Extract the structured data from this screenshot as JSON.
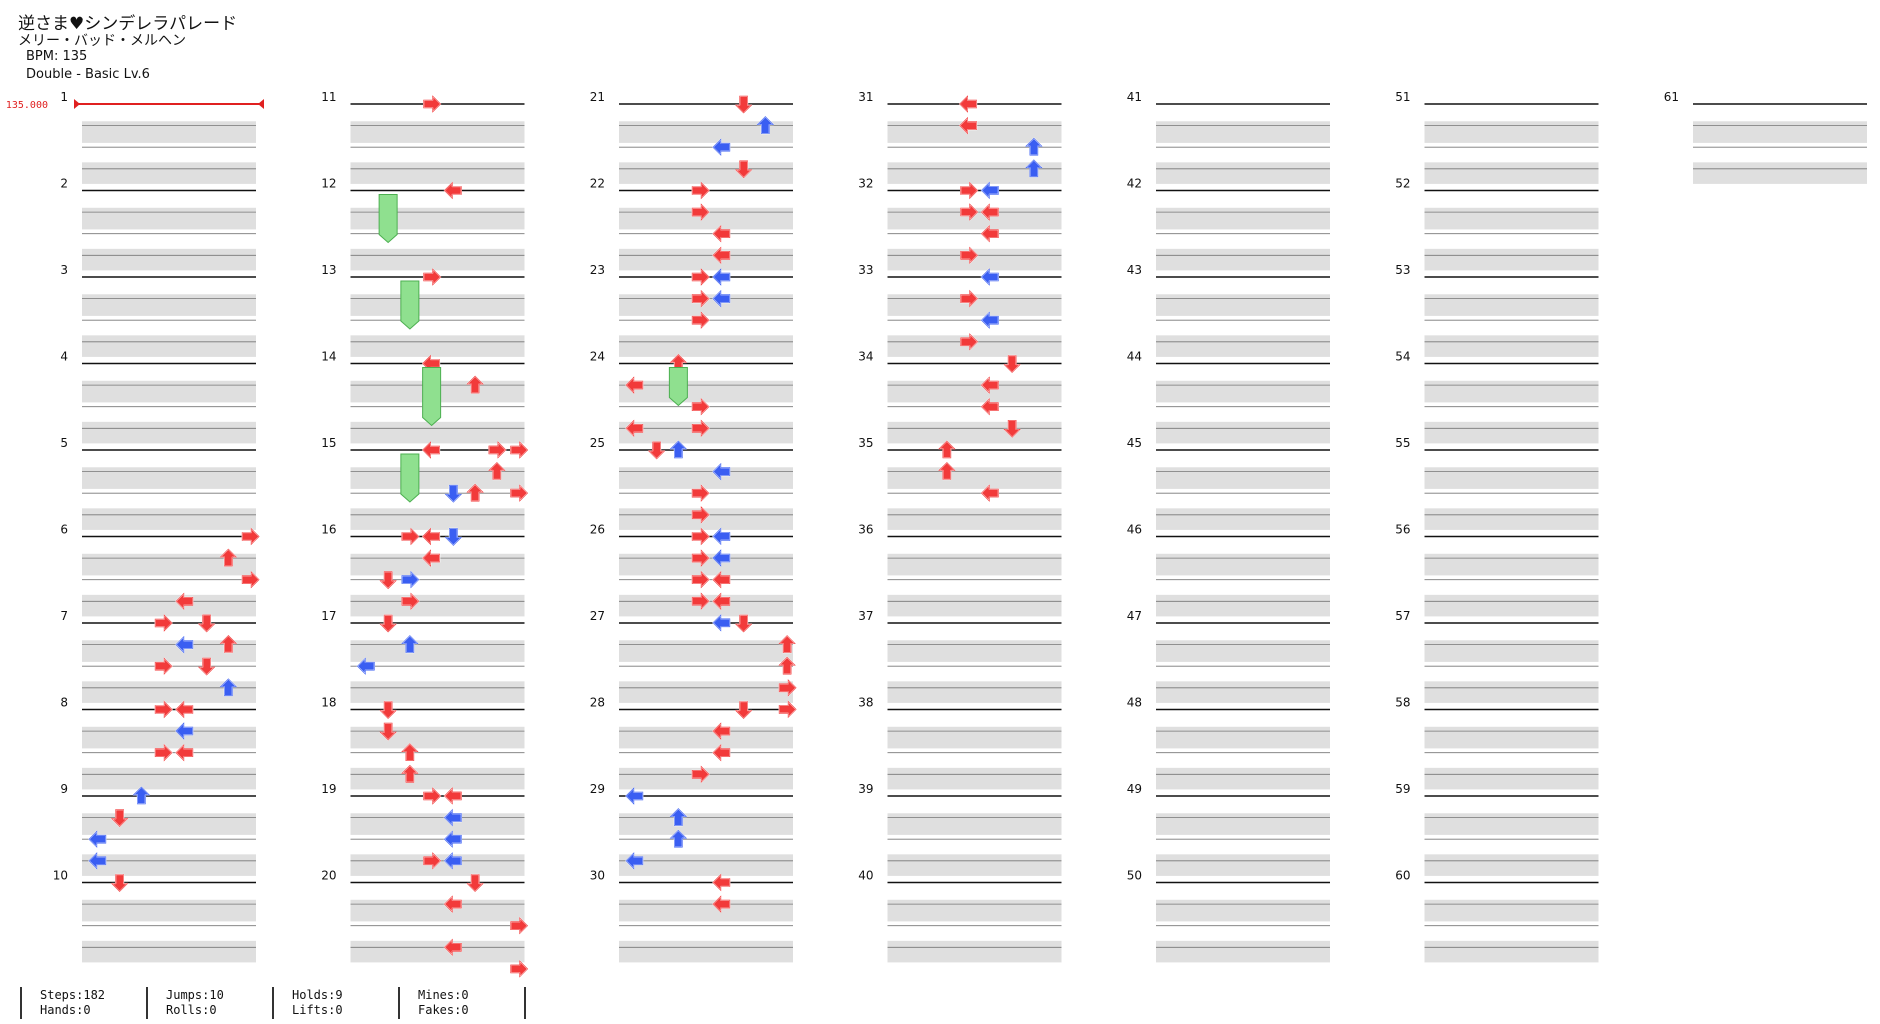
{
  "header": {
    "title": "逆さま♥シンデレラパレード",
    "artist": "メリー・バッド・メルヘン",
    "bpm": "BPM: 135",
    "difficulty": "Double - Basic  Lv.6"
  },
  "bpm_marker": "135.000",
  "colors": {
    "red_note": "#f23a3a",
    "blue_note": "#3a5ef2",
    "hold": "#8fe08f",
    "row_fill": "#dfdfdf",
    "bpm_line": "#e02020"
  },
  "chart_data": {
    "type": "note_chart",
    "mode": "Double",
    "lanes": 8,
    "measure_numbers": [
      "1",
      "2",
      "3",
      "4",
      "5",
      "6",
      "7",
      "8",
      "9",
      "10",
      "11",
      "12",
      "13",
      "14",
      "15",
      "16",
      "17",
      "18",
      "19",
      "20",
      "21",
      "22",
      "23",
      "24",
      "25",
      "26",
      "27",
      "28",
      "29",
      "30",
      "31",
      "32",
      "33",
      "34",
      "35",
      "36",
      "37",
      "38",
      "39",
      "40",
      "41",
      "42",
      "43",
      "44",
      "45",
      "46",
      "47",
      "48",
      "49",
      "50",
      "51",
      "52",
      "53",
      "54",
      "55",
      "56",
      "57",
      "58",
      "59",
      "60",
      "61"
    ],
    "notes": [
      [
        6,
        0,
        7,
        "R"
      ],
      [
        6,
        1,
        6,
        "U"
      ],
      [
        6,
        2,
        7,
        "R"
      ],
      [
        6,
        3,
        4,
        "L"
      ],
      [
        6,
        4,
        5,
        "D"
      ],
      [
        6,
        5,
        6,
        "U"
      ],
      [
        6,
        6,
        5,
        "D"
      ],
      [
        7,
        0,
        3,
        "R"
      ],
      [
        7,
        1,
        4,
        "L"
      ],
      [
        7,
        2,
        3,
        "R"
      ],
      [
        7,
        3,
        6,
        "U"
      ],
      [
        7,
        4,
        3,
        "R"
      ],
      [
        7,
        5,
        4,
        "L"
      ],
      [
        7,
        6,
        3,
        "R"
      ],
      [
        8,
        0,
        3,
        "R"
      ],
      [
        8,
        0,
        4,
        "L"
      ],
      [
        8,
        2,
        3,
        "R"
      ],
      [
        8,
        2,
        4,
        "L"
      ],
      [
        9,
        0,
        2,
        "U"
      ],
      [
        9,
        1,
        1,
        "D"
      ],
      [
        9,
        2,
        0,
        "L"
      ],
      [
        9,
        3,
        0,
        "L"
      ],
      [
        10,
        0,
        1,
        "D"
      ],
      [
        11,
        0,
        3,
        "R"
      ],
      [
        12,
        0,
        4,
        "L"
      ],
      [
        13,
        0,
        3,
        "R"
      ],
      [
        14,
        0,
        3,
        "L"
      ],
      [
        14,
        1,
        5,
        "U"
      ],
      [
        14,
        2,
        3,
        "L"
      ],
      [
        14,
        4,
        6,
        "R"
      ],
      [
        14,
        4,
        7,
        "R"
      ],
      [
        14,
        5,
        6,
        "U"
      ],
      [
        14,
        6,
        7,
        "R"
      ],
      [
        15,
        0,
        3,
        "L"
      ],
      [
        15,
        0,
        7,
        "R"
      ],
      [
        15,
        2,
        4,
        "D"
      ],
      [
        15,
        2,
        5,
        "U"
      ],
      [
        15,
        4,
        4,
        "D"
      ],
      [
        15,
        5,
        3,
        "L"
      ],
      [
        15,
        6,
        2,
        "R"
      ],
      [
        16,
        0,
        3,
        "L"
      ],
      [
        16,
        0,
        2,
        "R"
      ],
      [
        16,
        1,
        3,
        "L"
      ],
      [
        16,
        2,
        1,
        "D"
      ],
      [
        16,
        3,
        2,
        "R"
      ],
      [
        17,
        0,
        1,
        "D"
      ],
      [
        17,
        1,
        2,
        "U"
      ],
      [
        17,
        2,
        0,
        "L"
      ],
      [
        18,
        0,
        1,
        "D"
      ],
      [
        18,
        1,
        1,
        "D"
      ],
      [
        18,
        2,
        2,
        "U"
      ],
      [
        18,
        3,
        2,
        "U"
      ],
      [
        18,
        4,
        4,
        "L"
      ],
      [
        18,
        5,
        4,
        "L"
      ],
      [
        19,
        0,
        3,
        "R"
      ],
      [
        19,
        1,
        4,
        "L"
      ],
      [
        19,
        2,
        4,
        "L"
      ],
      [
        19,
        3,
        3,
        "R"
      ],
      [
        19,
        3,
        4,
        "L"
      ],
      [
        20,
        0,
        5,
        "D"
      ],
      [
        20,
        1,
        4,
        "L"
      ],
      [
        20,
        2,
        7,
        "R"
      ],
      [
        20,
        3,
        4,
        "L"
      ],
      [
        20,
        4,
        7,
        "R"
      ],
      [
        21,
        0,
        5,
        "D"
      ],
      [
        21,
        1,
        6,
        "U"
      ],
      [
        21,
        2,
        4,
        "L"
      ],
      [
        21,
        3,
        5,
        "D"
      ],
      [
        22,
        0,
        3,
        "R"
      ],
      [
        22,
        1,
        3,
        "R"
      ],
      [
        22,
        2,
        4,
        "L"
      ],
      [
        22,
        3,
        4,
        "L"
      ],
      [
        23,
        0,
        3,
        "R"
      ],
      [
        23,
        0,
        4,
        "L"
      ],
      [
        23,
        1,
        3,
        "R"
      ],
      [
        23,
        1,
        4,
        "L"
      ],
      [
        23,
        2,
        3,
        "R"
      ],
      [
        24,
        0,
        2,
        "U"
      ],
      [
        24,
        1,
        0,
        "L"
      ],
      [
        24,
        2,
        3,
        "R"
      ],
      [
        24,
        3,
        0,
        "L"
      ],
      [
        24,
        3,
        3,
        "R"
      ],
      [
        24,
        4,
        1,
        "D"
      ],
      [
        25,
        0,
        2,
        "U"
      ],
      [
        25,
        1,
        4,
        "L"
      ],
      [
        25,
        2,
        3,
        "R"
      ],
      [
        25,
        3,
        3,
        "R"
      ],
      [
        25,
        4,
        4,
        "L"
      ],
      [
        25,
        5,
        4,
        "L"
      ],
      [
        25,
        6,
        3,
        "R"
      ],
      [
        25,
        7,
        3,
        "R"
      ],
      [
        25,
        8,
        4,
        "L"
      ],
      [
        26,
        0,
        3,
        "R"
      ],
      [
        26,
        1,
        3,
        "R"
      ],
      [
        26,
        2,
        4,
        "L"
      ],
      [
        26,
        3,
        4,
        "L"
      ],
      [
        27,
        0,
        5,
        "D"
      ],
      [
        27,
        1,
        7,
        "U"
      ],
      [
        27,
        2,
        7,
        "U"
      ],
      [
        27,
        3,
        7,
        "R"
      ],
      [
        27,
        4,
        7,
        "R"
      ],
      [
        28,
        0,
        5,
        "D"
      ],
      [
        28,
        1,
        4,
        "L"
      ],
      [
        28,
        2,
        4,
        "L"
      ],
      [
        28,
        3,
        3,
        "R"
      ],
      [
        29,
        0,
        0,
        "L"
      ],
      [
        29,
        1,
        2,
        "U"
      ],
      [
        29,
        2,
        2,
        "U"
      ],
      [
        29,
        3,
        0,
        "L"
      ],
      [
        30,
        0,
        4,
        "L"
      ],
      [
        30,
        1,
        4,
        "L"
      ],
      [
        31,
        0,
        3,
        "L"
      ],
      [
        31,
        1,
        3,
        "L"
      ],
      [
        31,
        2,
        6,
        "U"
      ],
      [
        31,
        3,
        6,
        "U"
      ],
      [
        31,
        4,
        4,
        "L"
      ],
      [
        31,
        5,
        3,
        "R"
      ],
      [
        32,
        0,
        3,
        "R"
      ],
      [
        32,
        1,
        4,
        "L"
      ],
      [
        32,
        2,
        4,
        "L"
      ],
      [
        32,
        3,
        3,
        "R"
      ],
      [
        32,
        4,
        4,
        "L"
      ],
      [
        32,
        5,
        3,
        "R"
      ],
      [
        33,
        0,
        4,
        "L"
      ],
      [
        33,
        1,
        3,
        "R"
      ],
      [
        33,
        2,
        4,
        "L"
      ],
      [
        33,
        3,
        3,
        "R"
      ],
      [
        34,
        0,
        5,
        "D"
      ],
      [
        34,
        1,
        4,
        "L"
      ],
      [
        34,
        2,
        4,
        "L"
      ],
      [
        34,
        3,
        5,
        "D"
      ],
      [
        34,
        4,
        2,
        "U"
      ],
      [
        34,
        5,
        2,
        "U"
      ],
      [
        34,
        6,
        4,
        "L"
      ]
    ]
  },
  "stats": {
    "steps": "Steps:182",
    "hands": "Hands:0",
    "jumps": "Jumps:10",
    "rolls": "Rolls:0",
    "holds": "Holds:9",
    "lifts": "Lifts:0",
    "mines": "Mines:0",
    "fakes": "Fakes:0"
  }
}
